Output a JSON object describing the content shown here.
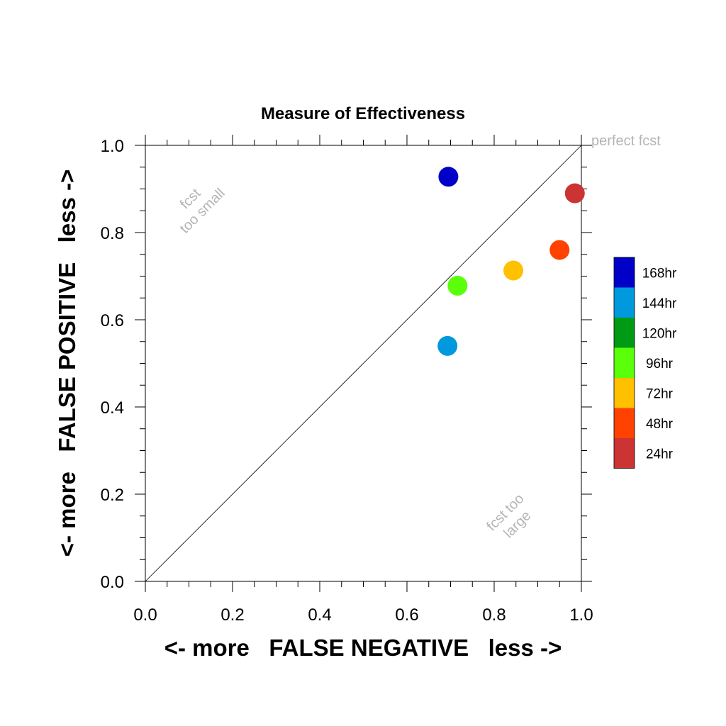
{
  "chart_data": {
    "type": "scatter",
    "title": "Measure of Effectiveness",
    "xlabel": "<- more   FALSE NEGATIVE   less ->",
    "ylabel": "<- more   FALSE POSITIVE   less ->",
    "xlim": [
      0.0,
      1.0
    ],
    "ylim": [
      0.0,
      1.0
    ],
    "xticks": [
      "0.0",
      "0.2",
      "0.4",
      "0.6",
      "0.8",
      "1.0"
    ],
    "yticks": [
      "0.0",
      "0.2",
      "0.4",
      "0.6",
      "0.8",
      "1.0"
    ],
    "grid": false,
    "reference_line": "diagonal",
    "annotations": {
      "top_left": [
        "fcst",
        "too small"
      ],
      "bottom_right": [
        "fcst too",
        "large"
      ],
      "top_right": "perfect fcst"
    },
    "legend_placement": "right",
    "series": [
      {
        "name": "168hr",
        "color": "#0000c8",
        "x": 0.695,
        "y": 0.928
      },
      {
        "name": "144hr",
        "color": "#0099dd",
        "x": 0.693,
        "y": 0.54
      },
      {
        "name": "120hr",
        "color": "#009a14",
        "x": null,
        "y": null
      },
      {
        "name": "96hr",
        "color": "#5aff0a",
        "x": 0.716,
        "y": 0.678
      },
      {
        "name": "72hr",
        "color": "#ffc000",
        "x": 0.844,
        "y": 0.713
      },
      {
        "name": "48hr",
        "color": "#ff4200",
        "x": 0.95,
        "y": 0.76
      },
      {
        "name": "24hr",
        "color": "#cc3333",
        "x": 0.985,
        "y": 0.89
      }
    ]
  }
}
